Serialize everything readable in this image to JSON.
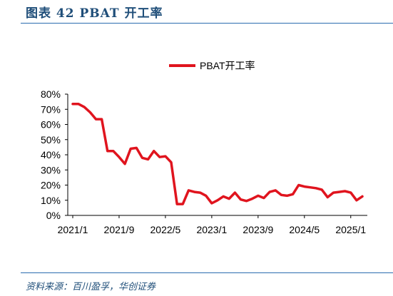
{
  "figure": {
    "title": "图表 42   PBAT 开工率",
    "source": "资料来源：百川盈孚，华创证券"
  },
  "chart_data": {
    "type": "line",
    "title": "",
    "xlabel": "",
    "ylabel": "",
    "legend": {
      "position": "top-center",
      "entries": [
        "PBAT开工率"
      ]
    },
    "grid": false,
    "ylim": [
      0,
      80
    ],
    "ytick_labels": [
      "0%",
      "10%",
      "20%",
      "30%",
      "40%",
      "50%",
      "60%",
      "70%",
      "80%"
    ],
    "xtick_labels": [
      "2021/1",
      "2021/9",
      "2022/5",
      "2023/1",
      "2023/9",
      "2024/5",
      "2025/1"
    ],
    "xlim": [
      "2021-01",
      "2025-03"
    ],
    "series": [
      {
        "name": "PBAT开工率",
        "color": "#e0141e",
        "x": [
          "2021-01",
          "2021-02",
          "2021-03",
          "2021-04",
          "2021-05",
          "2021-06",
          "2021-07",
          "2021-08",
          "2021-09",
          "2021-10",
          "2021-11",
          "2021-12",
          "2022-01",
          "2022-02",
          "2022-03",
          "2022-04",
          "2022-05",
          "2022-06",
          "2022-07",
          "2022-08",
          "2022-09",
          "2022-10",
          "2022-11",
          "2022-12",
          "2023-01",
          "2023-02",
          "2023-03",
          "2023-04",
          "2023-05",
          "2023-06",
          "2023-07",
          "2023-08",
          "2023-09",
          "2023-10",
          "2023-11",
          "2023-12",
          "2024-01",
          "2024-02",
          "2024-03",
          "2024-04",
          "2024-05",
          "2024-06",
          "2024-07",
          "2024-08",
          "2024-09",
          "2024-10",
          "2024-11",
          "2024-12",
          "2025-01",
          "2025-02",
          "2025-03"
        ],
        "values": [
          73.5,
          73.5,
          71.5,
          68,
          63.5,
          63.5,
          42.5,
          42.5,
          38.5,
          34,
          44,
          44.5,
          38,
          37,
          42.5,
          38.5,
          39,
          35,
          7.5,
          7.5,
          16.5,
          15.5,
          15,
          13,
          8,
          10,
          12.5,
          11,
          15,
          10.5,
          9.5,
          11,
          13,
          11.5,
          15.5,
          16.5,
          13.5,
          13,
          14,
          20,
          19,
          18.5,
          18,
          17,
          12,
          15,
          15.5,
          16,
          15,
          10,
          12.5
        ]
      }
    ]
  }
}
